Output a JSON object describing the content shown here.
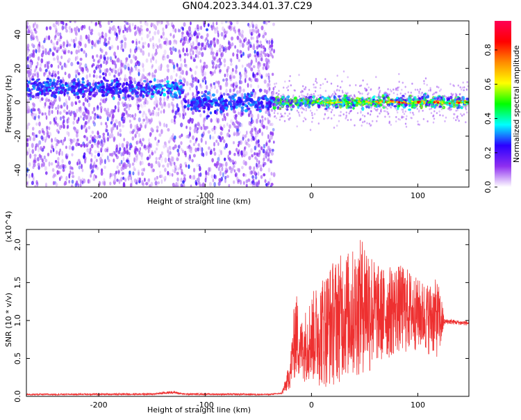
{
  "title": "GN04.2023.344.01.37.C29",
  "colors": {
    "accent": "#ee3030",
    "axis": "#000000",
    "spectrogram_low": "#8f2ff0",
    "spectrogram_high": "#ff0000"
  },
  "chart_data": [
    {
      "type": "heatmap",
      "title": "GN04.2023.344.01.37.C29",
      "xlabel": "Height of straight line (km)",
      "ylabel": "Frequency (Hz)",
      "xlim": [
        -268,
        148
      ],
      "ylim": [
        -50,
        48
      ],
      "xticks": [
        -200,
        -100,
        0,
        100
      ],
      "yticks": [
        -40,
        -20,
        0,
        20,
        40
      ],
      "grid": false,
      "noise_region": {
        "x_range": [
          -268,
          -35
        ],
        "y_range": [
          -50,
          48
        ],
        "typical_amplitude": 0.08
      },
      "carrier_band": {
        "x_range": [
          -268,
          148
        ],
        "center_frequency": 0,
        "early_center_frequency": 8,
        "early_x_range": [
          -268,
          -120
        ]
      },
      "signal_region": {
        "x_range": [
          -35,
          148
        ],
        "typical_amplitude": 0.35,
        "peak_amplitude": 0.95
      },
      "colorbar": {
        "label": "Normalized spectral amplitude",
        "range": [
          0.0,
          0.97
        ],
        "ticks": [
          0.0,
          0.2,
          0.4,
          0.6,
          0.8
        ],
        "colors": [
          "#ffffff",
          "#8f2ff0",
          "#2b00ff",
          "#00ffff",
          "#00ff00",
          "#ffff00",
          "#ff8c00",
          "#ff0000",
          "#ff0055"
        ]
      }
    },
    {
      "type": "line",
      "xlabel": "Height of straight line (km)",
      "ylabel": "SNR (10 * v/v)",
      "y_multiplier": "(x10^4)",
      "xlim": [
        -268,
        148
      ],
      "ylim": [
        0.0,
        2.2
      ],
      "xticks": [
        -200,
        -100,
        0,
        100
      ],
      "yticks": [
        0.0,
        0.5,
        1.0,
        1.5,
        2.0
      ],
      "grid": false,
      "color": "#ee3030",
      "envelope": {
        "x": [
          -268,
          -150,
          -130,
          -120,
          -40,
          -28,
          -24,
          -20,
          -15,
          -10,
          0,
          10,
          20,
          30,
          40,
          50,
          55,
          60,
          70,
          80,
          90,
          100,
          110,
          118,
          122,
          125,
          130,
          140,
          148
        ],
        "upper": [
          0.05,
          0.06,
          0.1,
          0.06,
          0.05,
          0.06,
          0.25,
          0.5,
          1.45,
          1.0,
          1.35,
          1.6,
          1.8,
          1.9,
          1.95,
          2.15,
          2.05,
          1.75,
          1.7,
          1.75,
          1.7,
          1.55,
          1.5,
          1.55,
          1.35,
          1.02,
          1.02,
          1.0,
          1.0
        ],
        "lower": [
          0.0,
          0.0,
          0.01,
          0.0,
          0.0,
          0.02,
          0.05,
          0.1,
          0.22,
          0.2,
          0.18,
          0.1,
          0.12,
          0.22,
          0.2,
          0.3,
          0.25,
          0.4,
          0.45,
          0.55,
          0.55,
          0.6,
          0.55,
          0.5,
          0.6,
          0.95,
          0.95,
          0.94,
          0.93
        ]
      }
    }
  ]
}
